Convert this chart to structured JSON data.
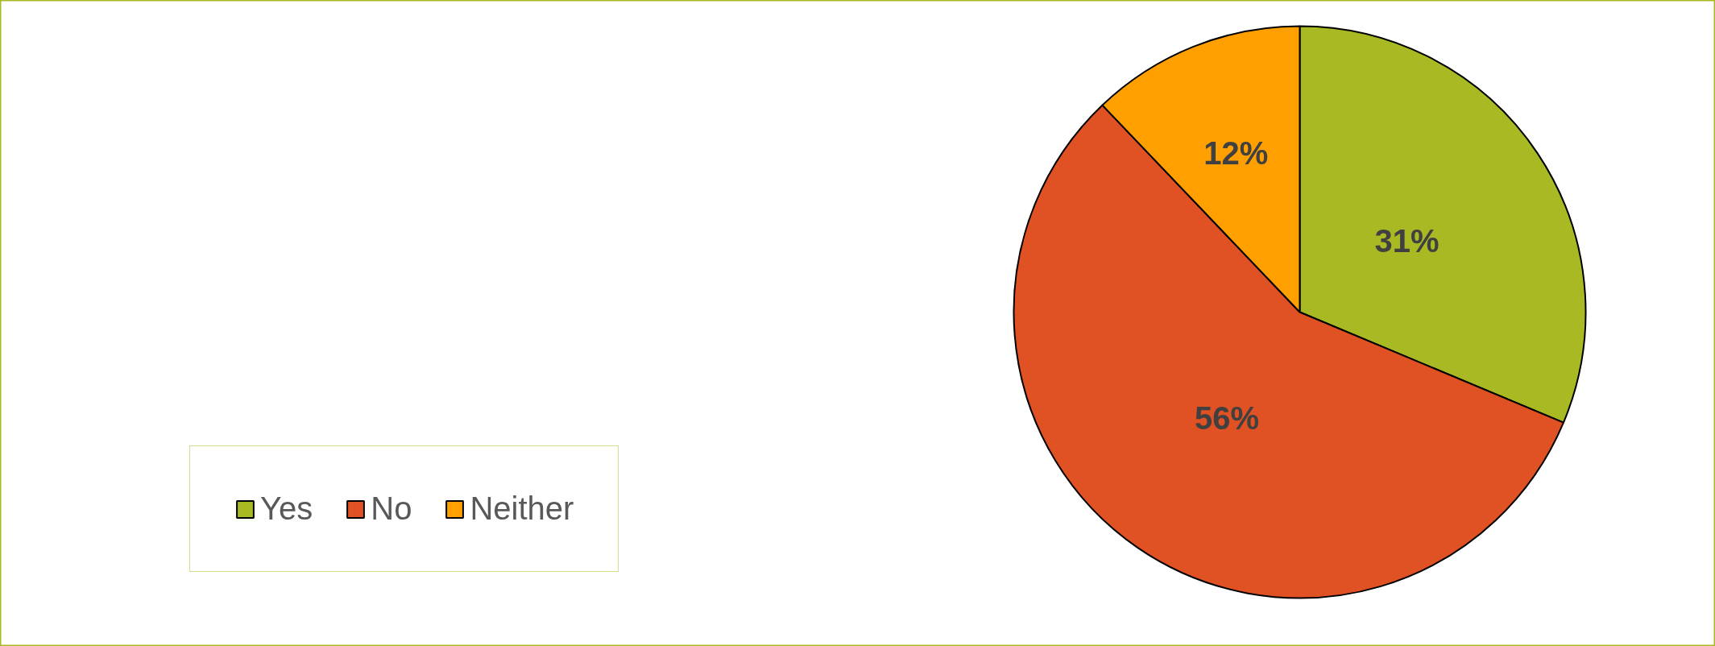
{
  "chart_data": {
    "type": "pie",
    "categories": [
      "Yes",
      "No",
      "Neither"
    ],
    "values": [
      31,
      56,
      12
    ],
    "colors": [
      "#a9b923",
      "#e05123",
      "#ff9f00"
    ],
    "value_labels": [
      "31%",
      "56%",
      "12%"
    ],
    "legend": "left"
  }
}
